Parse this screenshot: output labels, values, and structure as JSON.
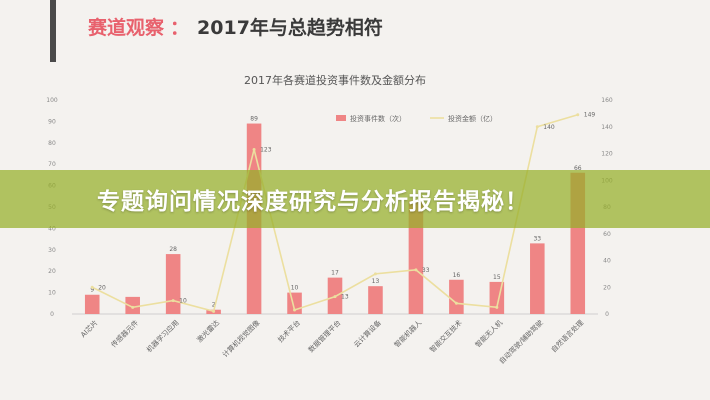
{
  "header": {
    "title_lead": "赛道观察",
    "title_sep": "：",
    "title_rest": "2017年与总趋势相符"
  },
  "banner": {
    "text": "专题询问情况深度研究与分析报告揭秘！"
  },
  "colors": {
    "bar": "#ef8585",
    "line": "#ecdf9f",
    "accent": "#e8616d"
  },
  "chart_data": {
    "type": "bar",
    "title": "2017年各赛道投资事件数及金额分布",
    "categories": [
      "AI芯片",
      "传感器元件",
      "机器学习应用",
      "激光雷达",
      "计算机视觉图像",
      "技术平台",
      "数据管理平台",
      "云计算设备",
      "智能机器人",
      "智能交互技术",
      "智能无人机",
      "自动驾驶/辅助驾驶",
      "自然语言处理"
    ],
    "series": [
      {
        "name": "投资事件数（次）",
        "type": "bar",
        "axis": "left",
        "values": [
          9,
          8,
          28,
          2,
          89,
          10,
          17,
          13,
          53,
          16,
          15,
          33,
          66
        ],
        "labels": [
          "9",
          "",
          "28",
          "2",
          "89",
          "10",
          "17",
          "13",
          "",
          "16",
          "15",
          "33",
          "66"
        ]
      },
      {
        "name": "投资金额（亿）",
        "type": "line",
        "axis": "right",
        "values": [
          20,
          5,
          10,
          2,
          123,
          3,
          13,
          30,
          33,
          8,
          5,
          140,
          149
        ],
        "labels": [
          "20",
          "",
          "10",
          "",
          "123",
          "",
          "13",
          "",
          "33",
          "",
          "",
          "140",
          "149"
        ]
      }
    ],
    "y_left": {
      "min": 0,
      "max": 100,
      "ticks": [
        "0",
        "10",
        "20",
        "30",
        "40",
        "50",
        "60",
        "70",
        "80",
        "90",
        "100"
      ]
    },
    "y_right": {
      "min": 0,
      "max": 160,
      "ticks": [
        "0",
        "20",
        "40",
        "60",
        "80",
        "100",
        "120",
        "140",
        "160"
      ]
    },
    "grid": false,
    "legend_position": "top-right"
  }
}
